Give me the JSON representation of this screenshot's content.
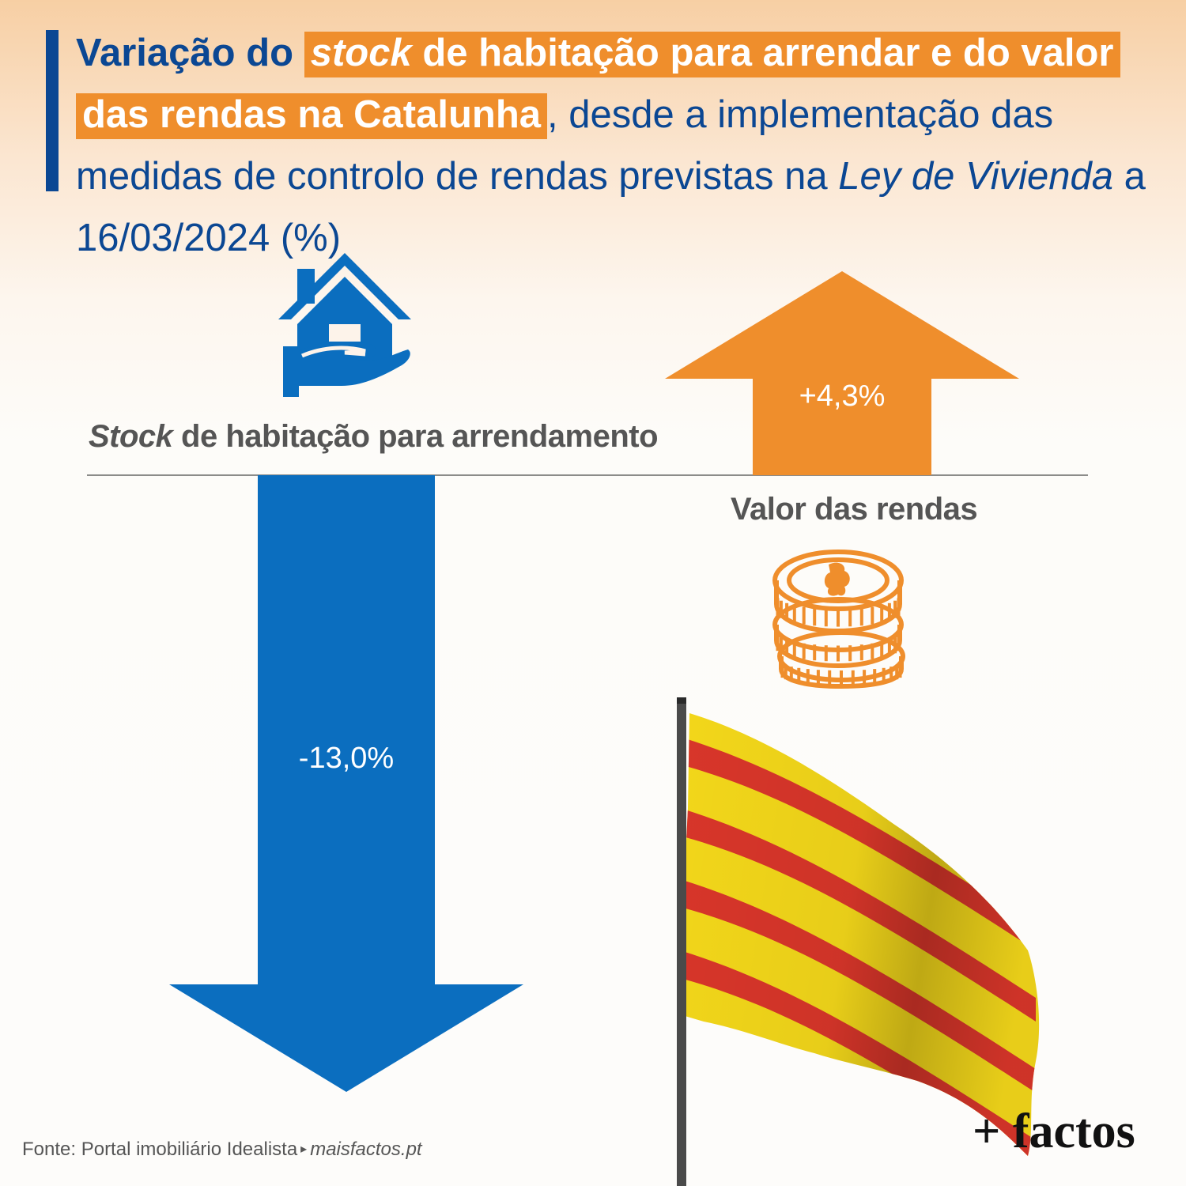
{
  "title": {
    "lead": "Variação do ",
    "hl1_em": "stock",
    "hl1_rest": " de habitação para arrendar e do valor das rendas na Catalunha",
    "rest": ", desde a implementação das medidas de controlo de rendas previstas na ",
    "em2": "Ley de Vivienda",
    "tail": " a 16/03/2024 (%)"
  },
  "chart_data": {
    "type": "bar",
    "categories": [
      "Stock de habitação para arrendamento",
      "Valor das rendas"
    ],
    "values": [
      -13.0,
      4.3
    ],
    "value_labels": [
      "-13,0%",
      "+4,3%"
    ],
    "unit": "%",
    "colors": {
      "negative": "#0b6ebf",
      "positive": "#ef8e2c"
    }
  },
  "labels": {
    "stock_em": "Stock",
    "stock_rest": " de habitação para arrendamento",
    "rendas": "Valor das rendas"
  },
  "values": {
    "stock": "-13,0%",
    "rendas": "+4,3%"
  },
  "icons": {
    "house": "house-in-hand-icon",
    "coins": "coin-stack-icon",
    "flag": "catalan-flag"
  },
  "footer": {
    "source": "Fonte: Portal imobiliário Idealista",
    "arrow": "▸",
    "site": "maisfactos.pt",
    "brand": "+ factos"
  },
  "colors": {
    "navy": "#0b4793",
    "orange": "#ef8e2c",
    "blue": "#0b6ebf",
    "gray_text": "#555555"
  }
}
